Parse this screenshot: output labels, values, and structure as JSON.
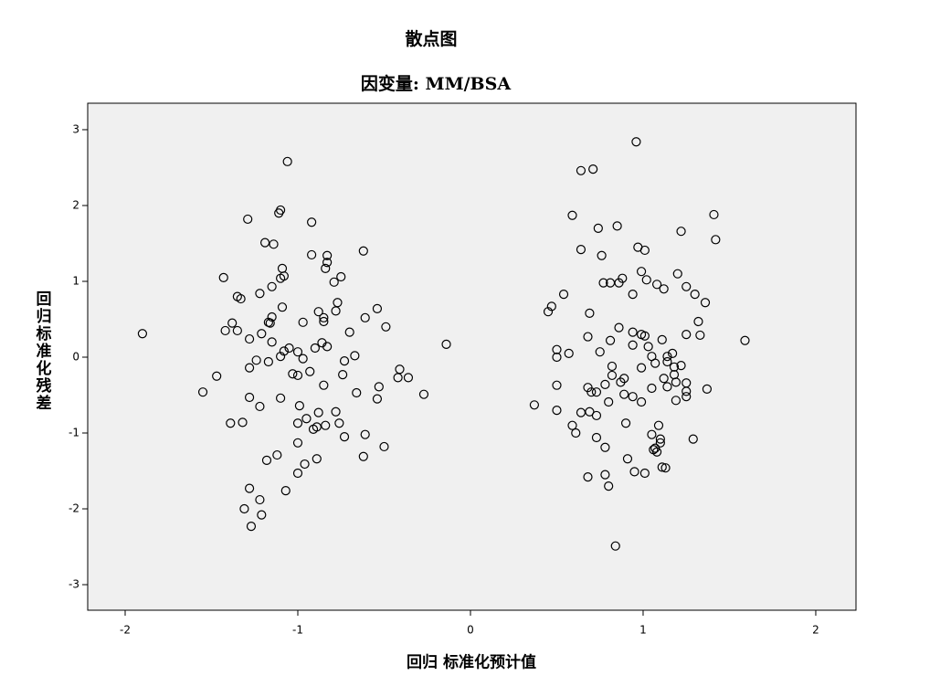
{
  "chart_data": {
    "type": "scatter",
    "title": "散点图",
    "subtitle": "因变量: MM/BSA",
    "x_label": "回归 标准化预计值",
    "y_label": "回归标准化残差",
    "color": "#000000",
    "background": "#f0f0f0",
    "xlim": [
      -2.217,
      2.233
    ],
    "ylim": [
      -3.337,
      3.349
    ],
    "xticks": [
      -2,
      -1,
      0,
      1,
      2
    ],
    "yticks": [
      -3,
      -2,
      -1,
      0,
      1,
      2,
      3
    ],
    "grid": false,
    "x": [
      -1.9,
      -1.06,
      -1.11,
      -1.1,
      -1.29,
      -0.92,
      -1.19,
      -1.14,
      -0.92,
      -0.83,
      -0.83,
      -0.84,
      -0.62,
      -1.09,
      -1.08,
      -1.1,
      -1.43,
      -0.75,
      -0.79,
      -1.15,
      -1.22,
      -1.35,
      -1.33,
      -0.77,
      -1.09,
      -0.54,
      -0.88,
      -0.78,
      -0.85,
      -0.85,
      -1.15,
      -1.17,
      -1.16,
      -0.61,
      -0.97,
      -1.38,
      -1.42,
      -1.35,
      -0.49,
      -1.21,
      -0.7,
      -1.28,
      -1.15,
      -0.86,
      -0.9,
      -0.83,
      -1.05,
      -1.08,
      -1.1,
      -1.0,
      -1.24,
      -1.17,
      -0.97,
      -0.67,
      -0.73,
      -0.14,
      -1.28,
      -1.47,
      -1.03,
      -1.0,
      -0.93,
      -0.74,
      -0.41,
      -0.42,
      -0.36,
      -0.85,
      -0.53,
      -0.66,
      -1.55,
      -1.1,
      -1.28,
      -0.54,
      -0.27,
      -1.22,
      -0.99,
      -0.88,
      -0.78,
      -0.95,
      -1.0,
      -0.76,
      -1.39,
      -1.32,
      -0.84,
      -0.91,
      -0.89,
      -0.61,
      -0.73,
      -1.0,
      -0.5,
      -1.12,
      -0.62,
      -1.18,
      -0.89,
      -0.96,
      -1.0,
      -1.07,
      -1.28,
      -1.22,
      -1.31,
      -1.21,
      -1.27,
      0.96,
      0.64,
      0.71,
      0.59,
      0.85,
      0.74,
      1.41,
      1.22,
      1.42,
      0.97,
      1.01,
      0.64,
      0.76,
      0.99,
      1.2,
      0.88,
      0.77,
      0.81,
      0.86,
      1.02,
      1.08,
      1.12,
      1.25,
      0.54,
      1.3,
      0.94,
      1.36,
      0.47,
      0.45,
      0.69,
      1.32,
      0.86,
      0.99,
      1.01,
      0.94,
      0.68,
      1.33,
      1.25,
      1.59,
      0.81,
      0.94,
      1.11,
      1.03,
      0.5,
      0.5,
      0.57,
      0.75,
      1.05,
      1.17,
      1.14,
      0.82,
      0.99,
      1.07,
      1.14,
      1.18,
      1.22,
      0.82,
      0.89,
      0.87,
      1.18,
      1.12,
      1.19,
      1.25,
      0.78,
      0.68,
      0.7,
      0.73,
      0.5,
      1.14,
      1.05,
      1.37,
      1.25,
      1.25,
      1.19,
      0.89,
      0.94,
      0.8,
      0.99,
      0.37,
      0.5,
      0.69,
      0.73,
      0.64,
      0.59,
      0.61,
      0.9,
      1.09,
      1.05,
      1.1,
      1.1,
      0.73,
      1.29,
      0.78,
      1.07,
      1.08,
      1.06,
      0.91,
      1.11,
      1.13,
      0.95,
      1.01,
      0.68,
      0.78,
      0.8,
      0.84
    ],
    "y": [
      0.31,
      2.58,
      1.9,
      1.94,
      1.82,
      1.78,
      1.51,
      1.49,
      1.35,
      1.34,
      1.25,
      1.17,
      1.4,
      1.17,
      1.07,
      1.04,
      1.05,
      1.06,
      0.99,
      0.93,
      0.84,
      0.8,
      0.77,
      0.72,
      0.66,
      0.64,
      0.6,
      0.61,
      0.52,
      0.47,
      0.53,
      0.46,
      0.45,
      0.52,
      0.46,
      0.45,
      0.35,
      0.35,
      0.4,
      0.31,
      0.33,
      0.24,
      0.2,
      0.19,
      0.12,
      0.14,
      0.12,
      0.08,
      0.01,
      0.07,
      -0.04,
      -0.06,
      -0.02,
      0.02,
      -0.05,
      0.17,
      -0.14,
      -0.25,
      -0.22,
      -0.24,
      -0.19,
      -0.23,
      -0.16,
      -0.27,
      -0.27,
      -0.37,
      -0.39,
      -0.47,
      -0.46,
      -0.54,
      -0.53,
      -0.55,
      -0.49,
      -0.65,
      -0.64,
      -0.73,
      -0.72,
      -0.81,
      -0.87,
      -0.87,
      -0.87,
      -0.86,
      -0.9,
      -0.95,
      -0.92,
      -1.02,
      -1.05,
      -1.13,
      -1.18,
      -1.29,
      -1.31,
      -1.36,
      -1.34,
      -1.41,
      -1.53,
      -1.76,
      -1.73,
      -1.88,
      -2.0,
      -2.08,
      -2.23,
      2.84,
      2.46,
      2.48,
      1.87,
      1.73,
      1.7,
      1.88,
      1.66,
      1.55,
      1.45,
      1.41,
      1.42,
      1.34,
      1.13,
      1.1,
      1.04,
      0.98,
      0.98,
      0.98,
      1.02,
      0.96,
      0.9,
      0.93,
      0.83,
      0.83,
      0.83,
      0.72,
      0.67,
      0.6,
      0.58,
      0.47,
      0.39,
      0.3,
      0.28,
      0.33,
      0.27,
      0.29,
      0.3,
      0.22,
      0.22,
      0.16,
      0.23,
      0.14,
      0.1,
      0.0,
      0.05,
      0.07,
      0.01,
      0.05,
      0.01,
      -0.12,
      -0.14,
      -0.08,
      -0.06,
      -0.13,
      -0.11,
      -0.24,
      -0.28,
      -0.33,
      -0.23,
      -0.28,
      -0.33,
      -0.34,
      -0.36,
      -0.4,
      -0.46,
      -0.46,
      -0.37,
      -0.39,
      -0.41,
      -0.42,
      -0.45,
      -0.52,
      -0.57,
      -0.49,
      -0.52,
      -0.59,
      -0.59,
      -0.63,
      -0.7,
      -0.72,
      -0.77,
      -0.73,
      -0.9,
      -1.0,
      -0.87,
      -0.9,
      -1.02,
      -1.08,
      -1.13,
      -1.06,
      -1.08,
      -1.19,
      -1.2,
      -1.25,
      -1.22,
      -1.34,
      -1.45,
      -1.46,
      -1.51,
      -1.53,
      -1.58,
      -1.55,
      -1.7,
      -2.49
    ]
  }
}
